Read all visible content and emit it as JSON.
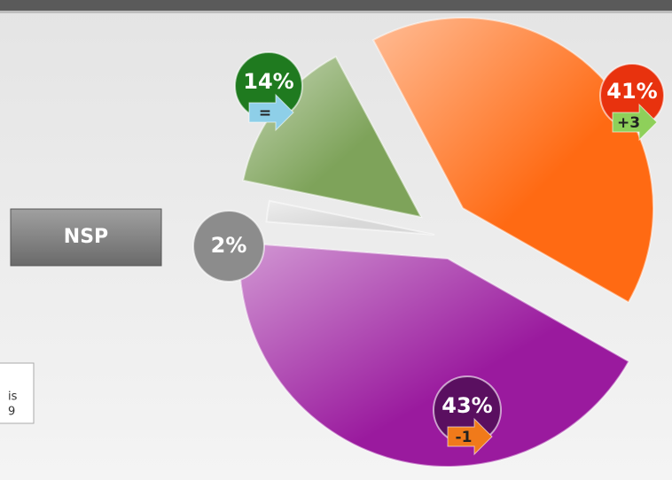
{
  "chart_data": {
    "type": "pie",
    "categories": [
      null,
      null,
      "NSP",
      null
    ],
    "values": [
      14,
      41,
      2,
      43
    ],
    "value_labels": [
      "14%",
      "41%",
      "2%",
      "43%"
    ],
    "change_labels": [
      "=",
      "+3",
      null,
      "-1"
    ],
    "colors": [
      "#7ea35a",
      "#ff6a13",
      "#d8d8d8",
      "#9a1a9e"
    ],
    "badge_colors": [
      "#1f7a1f",
      "#e8320e",
      "#8c8c8c",
      "#5a0f60"
    ],
    "arrow_colors": [
      "#8ecfe8",
      "#8ed05a",
      null,
      "#f07a1a"
    ],
    "note": [
      "is",
      "9"
    ]
  }
}
